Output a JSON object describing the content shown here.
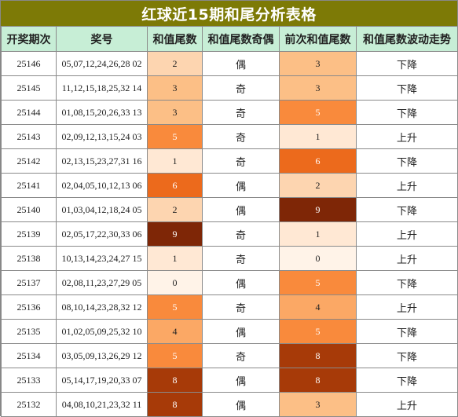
{
  "title": "红球近15期和尾分析表格",
  "headers": [
    "开奖期次",
    "奖号",
    "和值尾数",
    "和值尾数奇偶",
    "前次和值尾数",
    "和值尾数波动走势"
  ],
  "rows": [
    {
      "period": "25146",
      "numbers": "05,07,12,24,26,28 02",
      "tail": "2",
      "parity": "偶",
      "prev_tail": "3",
      "trend": "下降"
    },
    {
      "period": "25145",
      "numbers": "11,12,15,18,25,32 14",
      "tail": "3",
      "parity": "奇",
      "prev_tail": "3",
      "trend": "下降"
    },
    {
      "period": "25144",
      "numbers": "01,08,15,20,26,33 13",
      "tail": "3",
      "parity": "奇",
      "prev_tail": "5",
      "trend": "下降"
    },
    {
      "period": "25143",
      "numbers": "02,09,12,13,15,24 03",
      "tail": "5",
      "parity": "奇",
      "prev_tail": "1",
      "trend": "上升"
    },
    {
      "period": "25142",
      "numbers": "02,13,15,23,27,31 16",
      "tail": "1",
      "parity": "奇",
      "prev_tail": "6",
      "trend": "下降"
    },
    {
      "period": "25141",
      "numbers": "02,04,05,10,12,13 06",
      "tail": "6",
      "parity": "偶",
      "prev_tail": "2",
      "trend": "上升"
    },
    {
      "period": "25140",
      "numbers": "01,03,04,12,18,24 05",
      "tail": "2",
      "parity": "偶",
      "prev_tail": "9",
      "trend": "下降"
    },
    {
      "period": "25139",
      "numbers": "02,05,17,22,30,33 06",
      "tail": "9",
      "parity": "奇",
      "prev_tail": "1",
      "trend": "上升"
    },
    {
      "period": "25138",
      "numbers": "10,13,14,23,24,27 15",
      "tail": "1",
      "parity": "奇",
      "prev_tail": "0",
      "trend": "上升"
    },
    {
      "period": "25137",
      "numbers": "02,08,11,23,27,29 05",
      "tail": "0",
      "parity": "偶",
      "prev_tail": "5",
      "trend": "下降"
    },
    {
      "period": "25136",
      "numbers": "08,10,14,23,28,32 12",
      "tail": "5",
      "parity": "奇",
      "prev_tail": "4",
      "trend": "上升"
    },
    {
      "period": "25135",
      "numbers": "01,02,05,09,25,32 10",
      "tail": "4",
      "parity": "偶",
      "prev_tail": "5",
      "trend": "下降"
    },
    {
      "period": "25134",
      "numbers": "03,05,09,13,26,29 12",
      "tail": "5",
      "parity": "奇",
      "prev_tail": "8",
      "trend": "下降"
    },
    {
      "period": "25133",
      "numbers": "05,14,17,19,20,33 07",
      "tail": "8",
      "parity": "偶",
      "prev_tail": "8",
      "trend": "下降"
    },
    {
      "period": "25132",
      "numbers": "04,08,10,21,23,32 11",
      "tail": "8",
      "parity": "偶",
      "prev_tail": "3",
      "trend": "上升"
    }
  ],
  "tail_colors": {
    "0": {
      "bg": "#fff3e8",
      "fg": "#222222"
    },
    "1": {
      "bg": "#ffe8d4",
      "fg": "#222222"
    },
    "2": {
      "bg": "#fdd5b0",
      "fg": "#222222"
    },
    "3": {
      "bg": "#fcbf86",
      "fg": "#222222"
    },
    "4": {
      "bg": "#fba865",
      "fg": "#222222"
    },
    "5": {
      "bg": "#f98a3c",
      "fg": "#ffffff"
    },
    "6": {
      "bg": "#ec6a1c",
      "fg": "#ffffff"
    },
    "8": {
      "bg": "#a73a08",
      "fg": "#ffffff"
    },
    "9": {
      "bg": "#7e2606",
      "fg": "#ffffff"
    }
  },
  "header_bg": "#c7eed6",
  "title_bg": "#7d7a06"
}
